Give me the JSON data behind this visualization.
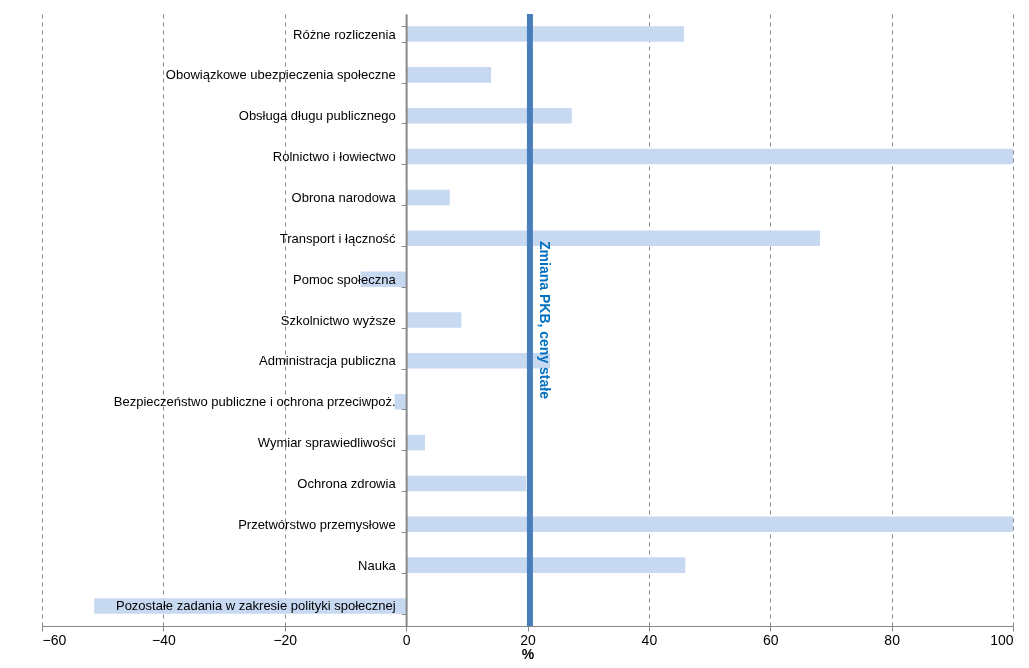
{
  "chart_data": {
    "type": "bar",
    "orientation": "horizontal",
    "xlabel": "%",
    "categories": [
      "Różne rozliczenia",
      "Obowiązkowe ubezpieczenia społeczne",
      "Obsługa długu publicznego",
      "Rolnictwo i łowiectwo",
      "Obrona narodowa",
      "Transport i łączność",
      "Pomoc społeczna",
      "Szkolnictwo wyższe",
      "Administracja publiczna",
      "Bezpieczeństwo publiczne i ochrona przeciwpoż.",
      "Wymiar sprawiedliwości",
      "Ochrona zdrowia",
      "Przetwórstwo przemysłowe",
      "Nauka",
      "Pozostałe zadania w zakresie polityki społecznej"
    ],
    "series": [
      {
        "color": "#c6d9f1",
        "values": [
          45.8,
          14.0,
          27.3,
          100,
          7.2,
          68.2,
          -7.5,
          9.1,
          23.7,
          -1.9,
          3.1,
          19.8,
          100,
          46.0,
          -51.4
        ]
      }
    ],
    "xlim": [
      -60,
      100
    ],
    "xticks": [
      -60,
      -40,
      -20,
      0,
      20,
      40,
      60,
      80,
      100
    ],
    "grid": "x",
    "ref_lines": [
      {
        "axis": "x",
        "value": 20.4,
        "label": "Zmiana PKB, ceny stałe",
        "color": "#4a7ebb"
      }
    ]
  }
}
